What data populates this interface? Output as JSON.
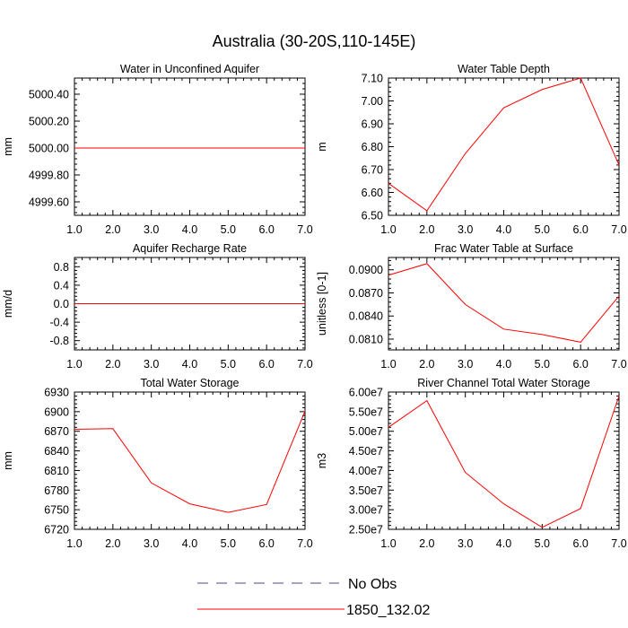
{
  "figure": {
    "title": "Australia (30-20S,110-145E)"
  },
  "chart_data": [
    {
      "type": "line",
      "title": "Water in Unconfined Aquifer",
      "xlabel": "",
      "ylabel": "mm",
      "xlim": [
        1.0,
        7.0
      ],
      "ylim": [
        4999.5,
        5000.52
      ],
      "xticks": [
        "1.0",
        "2.0",
        "3.0",
        "4.0",
        "5.0",
        "6.0",
        "7.0"
      ],
      "yticks": [
        {
          "v": 4999.6,
          "label": "4999.60"
        },
        {
          "v": 4999.8,
          "label": "4999.80"
        },
        {
          "v": 5000.0,
          "label": "5000.00"
        },
        {
          "v": 5000.2,
          "label": "5000.20"
        },
        {
          "v": 5000.4,
          "label": "5000.40"
        }
      ],
      "series": [
        {
          "name": "1850_132.02",
          "x": [
            1,
            2,
            3,
            4,
            5,
            6,
            7
          ],
          "y": [
            5000.0,
            5000.0,
            5000.0,
            5000.0,
            5000.0,
            5000.0,
            5000.0
          ]
        }
      ]
    },
    {
      "type": "line",
      "title": "Water Table Depth",
      "xlabel": "",
      "ylabel": "m",
      "xlim": [
        1.0,
        7.0
      ],
      "ylim": [
        6.5,
        7.1
      ],
      "xticks": [
        "1.0",
        "2.0",
        "3.0",
        "4.0",
        "5.0",
        "6.0",
        "7.0"
      ],
      "yticks": [
        {
          "v": 6.5,
          "label": "6.50"
        },
        {
          "v": 6.6,
          "label": "6.60"
        },
        {
          "v": 6.7,
          "label": "6.70"
        },
        {
          "v": 6.8,
          "label": "6.80"
        },
        {
          "v": 6.9,
          "label": "6.90"
        },
        {
          "v": 7.0,
          "label": "7.00"
        },
        {
          "v": 7.1,
          "label": "7.10"
        }
      ],
      "series": [
        {
          "name": "1850_132.02",
          "x": [
            1,
            2,
            3,
            4,
            5,
            6,
            7
          ],
          "y": [
            6.64,
            6.52,
            6.77,
            6.97,
            7.05,
            7.1,
            6.72
          ]
        }
      ]
    },
    {
      "type": "line",
      "title": "Aquifer Recharge Rate",
      "xlabel": "",
      "ylabel": "mm/d",
      "xlim": [
        1.0,
        7.0
      ],
      "ylim": [
        -1.0,
        1.0
      ],
      "xticks": [
        "1.0",
        "2.0",
        "3.0",
        "4.0",
        "5.0",
        "6.0",
        "7.0"
      ],
      "yticks": [
        {
          "v": -0.8,
          "label": "-0.8"
        },
        {
          "v": -0.4,
          "label": "-0.4"
        },
        {
          "v": 0.0,
          "label": "0.0"
        },
        {
          "v": 0.4,
          "label": "0.4"
        },
        {
          "v": 0.8,
          "label": "0.8"
        }
      ],
      "series": [
        {
          "name": "1850_132.02",
          "x": [
            1,
            2,
            3,
            4,
            5,
            6,
            7
          ],
          "y": [
            0,
            0,
            0,
            0,
            0,
            0,
            0
          ]
        }
      ]
    },
    {
      "type": "line",
      "title": "Frac Water Table at Surface",
      "xlabel": "",
      "ylabel": "unitless [0-1]",
      "xlim": [
        1.0,
        7.0
      ],
      "ylim": [
        0.0796,
        0.0916
      ],
      "xticks": [
        "1.0",
        "2.0",
        "3.0",
        "4.0",
        "5.0",
        "6.0",
        "7.0"
      ],
      "yticks": [
        {
          "v": 0.081,
          "label": "0.0810"
        },
        {
          "v": 0.084,
          "label": "0.0840"
        },
        {
          "v": 0.087,
          "label": "0.0870"
        },
        {
          "v": 0.09,
          "label": "0.0900"
        }
      ],
      "series": [
        {
          "name": "1850_132.02",
          "x": [
            1,
            2,
            3,
            4,
            5,
            6,
            7
          ],
          "y": [
            0.0893,
            0.0908,
            0.0855,
            0.0823,
            0.0816,
            0.0806,
            0.0866
          ]
        }
      ]
    },
    {
      "type": "line",
      "title": "Total Water Storage",
      "xlabel": "",
      "ylabel": "mm",
      "xlim": [
        1.0,
        7.0
      ],
      "ylim": [
        6720,
        6930
      ],
      "xticks": [
        "1.0",
        "2.0",
        "3.0",
        "4.0",
        "5.0",
        "6.0",
        "7.0"
      ],
      "yticks": [
        {
          "v": 6720,
          "label": "6720"
        },
        {
          "v": 6750,
          "label": "6750"
        },
        {
          "v": 6780,
          "label": "6780"
        },
        {
          "v": 6810,
          "label": "6810"
        },
        {
          "v": 6840,
          "label": "6840"
        },
        {
          "v": 6870,
          "label": "6870"
        },
        {
          "v": 6900,
          "label": "6900"
        },
        {
          "v": 6930,
          "label": "6930"
        }
      ],
      "series": [
        {
          "name": "1850_132.02",
          "x": [
            1,
            2,
            3,
            4,
            5,
            6,
            7
          ],
          "y": [
            6873,
            6874,
            6791,
            6759,
            6746,
            6758,
            6901
          ]
        }
      ]
    },
    {
      "type": "line",
      "title": "River Channel Total Water Storage",
      "xlabel": "",
      "ylabel": "m3",
      "xlim": [
        1.0,
        7.0
      ],
      "ylim": [
        25000000.0,
        60000000.0
      ],
      "xticks": [
        "1.0",
        "2.0",
        "3.0",
        "4.0",
        "5.0",
        "6.0",
        "7.0"
      ],
      "yticks": [
        {
          "v": 25000000.0,
          "label": "2.50e7"
        },
        {
          "v": 30000000.0,
          "label": "3.00e7"
        },
        {
          "v": 35000000.0,
          "label": "3.50e7"
        },
        {
          "v": 40000000.0,
          "label": "4.00e7"
        },
        {
          "v": 45000000.0,
          "label": "4.50e7"
        },
        {
          "v": 50000000.0,
          "label": "5.00e7"
        },
        {
          "v": 55000000.0,
          "label": "5.50e7"
        },
        {
          "v": 60000000.0,
          "label": "6.00e7"
        }
      ],
      "series": [
        {
          "name": "1850_132.02",
          "x": [
            1,
            2,
            3,
            4,
            5,
            6,
            7
          ],
          "y": [
            51000000.0,
            57800000.0,
            39500000.0,
            31500000.0,
            25500000.0,
            30300000.0,
            59000000.0
          ]
        }
      ]
    }
  ],
  "legend": {
    "items": [
      {
        "label": "No Obs",
        "color": "#4a4a8a",
        "dash": "dashed"
      },
      {
        "label": "1850_132.02",
        "color": "#ff0000",
        "dash": "solid"
      }
    ]
  },
  "colors": {
    "series_line": "#ff0000",
    "axes": "#000000"
  }
}
